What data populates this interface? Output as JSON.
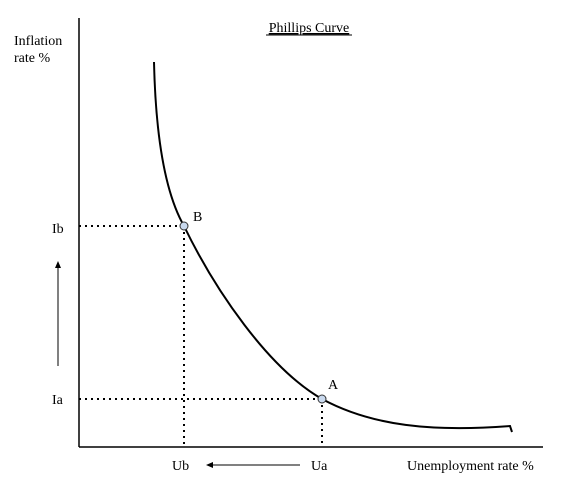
{
  "title": "Phillips Curve",
  "y_axis_label": [
    "Inflation",
    "rate %"
  ],
  "x_axis_label": "Unemployment rate %",
  "y_labels": [
    "Ib",
    "Ia"
  ],
  "x_labels": [
    "Ub",
    "Ua"
  ],
  "points": [
    {
      "label": "B"
    },
    {
      "label": "A"
    }
  ]
}
